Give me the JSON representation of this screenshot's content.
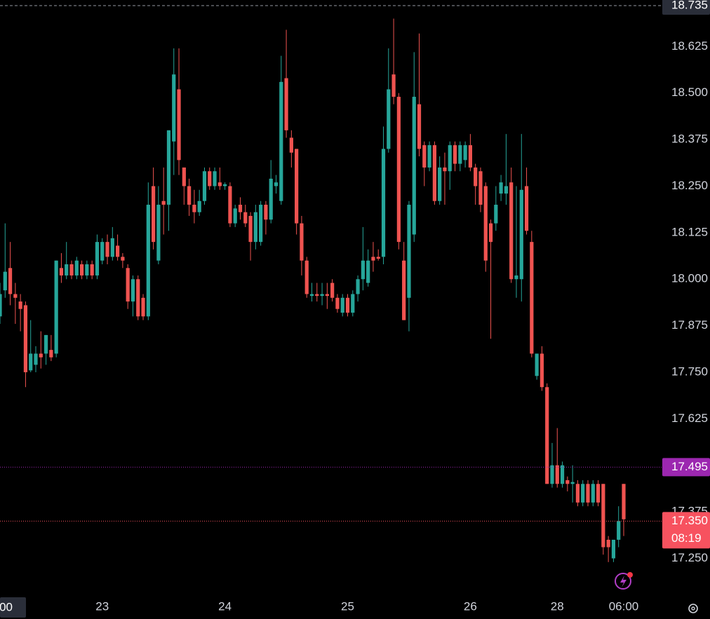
{
  "chart_data": {
    "type": "candlestick",
    "up_color": "#26a69a",
    "down_color": "#ef5350",
    "categories": [
      null,
      null,
      "00",
      null,
      null,
      null,
      null,
      null,
      null,
      null,
      null,
      null,
      null,
      null,
      null,
      null,
      null,
      null,
      null,
      null,
      "23",
      null,
      null,
      null,
      null,
      null,
      null,
      null,
      null,
      null,
      null,
      null,
      null,
      null,
      null,
      null,
      null,
      null,
      null,
      null,
      null,
      null,
      null,
      null,
      "24",
      null,
      null,
      null,
      null,
      null,
      null,
      null,
      null,
      null,
      null,
      null,
      null,
      null,
      null,
      null,
      null,
      null,
      null,
      null,
      null,
      null,
      null,
      null,
      "25",
      null,
      null,
      null,
      null,
      null,
      null,
      null,
      null,
      null,
      null,
      null,
      null,
      null,
      null,
      null,
      null,
      null,
      null,
      null,
      null,
      null,
      null,
      null,
      "26",
      null,
      null,
      null,
      null,
      null,
      null,
      null,
      null,
      null,
      null,
      null,
      null,
      null,
      null,
      null,
      null,
      "28",
      null,
      null,
      null,
      null,
      null,
      null,
      null,
      null,
      null,
      null,
      null,
      null,
      "06:00"
    ],
    "open": [
      17.9,
      17.97,
      18.03,
      17.96,
      17.94,
      17.93,
      17.755,
      17.77,
      17.8,
      17.8,
      17.81,
      17.8,
      18.03,
      18.01,
      18.04,
      18.01,
      18.04,
      18.01,
      18.04,
      18.01,
      18.05,
      18.1,
      18.06,
      18.09,
      18.06,
      18.03,
      17.94,
      18.0,
      17.95,
      17.9,
      18.25,
      18.05,
      18.21,
      18.2,
      18.37,
      18.51,
      18.3,
      18.25,
      18.2,
      18.18,
      18.21,
      18.29,
      18.25,
      18.26,
      18.25,
      18.25,
      18.15,
      18.2,
      18.18,
      18.17,
      18.1,
      18.1,
      18.2,
      18.16,
      18.25,
      18.21,
      18.54,
      18.38,
      18.35,
      18.15,
      18.05,
      17.955,
      17.96,
      17.955,
      17.96,
      17.99,
      17.95,
      17.91,
      17.95,
      17.91,
      17.96,
      18.0,
      17.99,
      18.06,
      18.06,
      18.06,
      18.35,
      18.55,
      18.49,
      18.05,
      17.95,
      18.12,
      18.47,
      18.36,
      18.3,
      18.36,
      18.21,
      18.3,
      18.29,
      18.36,
      18.31,
      18.32,
      18.36,
      18.3,
      18.29,
      18.25,
      18.15,
      18.15,
      18.23,
      18.23,
      18.26,
      18.0,
      18.0,
      18.25,
      18.1,
      17.74,
      17.8,
      17.71,
      17.45,
      17.5,
      17.45,
      17.46,
      17.45,
      17.45,
      17.4,
      17.45,
      17.4,
      17.45,
      17.45,
      17.3,
      17.25,
      17.3,
      17.45
    ],
    "high": [
      17.99,
      18.15,
      18.1,
      17.99,
      17.96,
      17.94,
      17.89,
      17.82,
      17.86,
      17.85,
      17.85,
      18.05,
      18.07,
      18.1,
      18.05,
      18.06,
      18.05,
      18.05,
      18.05,
      18.12,
      18.11,
      18.12,
      18.14,
      18.12,
      18.07,
      18.04,
      18.01,
      18.01,
      17.96,
      18.26,
      18.3,
      18.25,
      18.3,
      18.4,
      18.62,
      18.62,
      18.3,
      18.27,
      18.24,
      18.24,
      18.3,
      18.3,
      18.3,
      18.3,
      18.26,
      18.26,
      18.2,
      18.22,
      18.2,
      18.18,
      18.2,
      18.21,
      18.21,
      18.32,
      18.28,
      18.6,
      18.67,
      18.4,
      18.35,
      18.17,
      18.06,
      17.99,
      17.99,
      17.99,
      17.99,
      18.0,
      17.96,
      17.96,
      17.96,
      17.97,
      18.01,
      18.14,
      18.08,
      18.1,
      18.08,
      18.41,
      18.62,
      18.7,
      18.5,
      18.1,
      18.21,
      18.61,
      18.66,
      18.37,
      18.37,
      18.37,
      18.33,
      18.34,
      18.37,
      18.37,
      18.37,
      18.37,
      18.39,
      18.31,
      18.3,
      18.26,
      18.16,
      18.25,
      18.28,
      18.39,
      18.3,
      18.25,
      18.39,
      18.3,
      18.13,
      17.8,
      17.82,
      17.72,
      17.56,
      17.6,
      17.51,
      17.47,
      17.5,
      17.46,
      17.46,
      17.46,
      17.46,
      17.46,
      17.45,
      17.31,
      17.3,
      17.39,
      17.45
    ],
    "low": [
      17.88,
      17.95,
      17.93,
      17.88,
      17.86,
      17.71,
      17.75,
      17.75,
      17.76,
      17.77,
      17.78,
      17.79,
      17.99,
      18.0,
      18.0,
      18.0,
      18.0,
      18.0,
      18.0,
      18.0,
      18.04,
      18.04,
      18.05,
      18.05,
      18.03,
      17.92,
      17.9,
      17.89,
      17.89,
      17.89,
      18.08,
      18.04,
      18.12,
      18.13,
      18.28,
      18.28,
      18.2,
      18.17,
      18.15,
      18.17,
      18.2,
      18.24,
      18.24,
      18.24,
      18.24,
      18.14,
      18.14,
      18.16,
      18.14,
      18.05,
      18.08,
      18.09,
      18.12,
      18.15,
      18.23,
      18.2,
      18.38,
      18.3,
      18.12,
      18.01,
      17.95,
      17.94,
      17.94,
      17.93,
      17.92,
      17.94,
      17.91,
      17.9,
      17.9,
      17.9,
      17.94,
      17.97,
      17.98,
      18.02,
      18.05,
      18.04,
      18.34,
      18.47,
      18.08,
      17.89,
      17.86,
      18.1,
      18.33,
      18.25,
      18.29,
      18.2,
      18.2,
      18.2,
      18.24,
      18.29,
      18.29,
      18.3,
      18.29,
      18.2,
      18.18,
      18.02,
      17.84,
      18.13,
      18.21,
      18.2,
      17.99,
      17.95,
      17.94,
      18.12,
      17.79,
      17.73,
      17.7,
      17.45,
      17.44,
      17.44,
      17.44,
      17.43,
      17.4,
      17.39,
      17.39,
      17.39,
      17.39,
      17.39,
      17.26,
      17.24,
      17.24,
      17.28,
      17.31
    ],
    "close": [
      17.96,
      18.02,
      17.96,
      17.95,
      17.92,
      17.75,
      17.8,
      17.8,
      17.79,
      17.85,
      17.79,
      18.05,
      18.01,
      18.04,
      18.01,
      18.05,
      18.01,
      18.04,
      18.01,
      18.1,
      18.1,
      18.06,
      18.11,
      18.06,
      18.05,
      17.94,
      18.0,
      17.9,
      17.9,
      18.2,
      18.1,
      18.2,
      18.2,
      18.4,
      18.55,
      18.32,
      18.25,
      18.2,
      18.18,
      18.21,
      18.29,
      18.25,
      18.29,
      18.25,
      18.255,
      18.15,
      18.19,
      18.18,
      18.15,
      18.1,
      18.18,
      18.2,
      18.16,
      18.27,
      18.26,
      18.53,
      18.4,
      18.34,
      18.15,
      18.05,
      17.96,
      17.96,
      17.955,
      17.96,
      17.955,
      17.95,
      17.92,
      17.95,
      17.91,
      17.96,
      18.0,
      18.05,
      18.05,
      18.05,
      18.055,
      18.35,
      18.51,
      18.49,
      18.1,
      17.89,
      18.2,
      18.49,
      18.35,
      18.3,
      18.36,
      18.21,
      18.3,
      18.29,
      18.36,
      18.31,
      18.36,
      18.36,
      18.3,
      18.25,
      18.2,
      18.05,
      18.1,
      18.2,
      18.26,
      18.25,
      18.0,
      18.01,
      18.24,
      18.13,
      17.8,
      17.8,
      17.71,
      17.45,
      17.5,
      17.45,
      17.5,
      17.45,
      17.455,
      17.4,
      17.45,
      17.4,
      17.45,
      17.4,
      17.28,
      17.28,
      17.3,
      17.35,
      17.355
    ],
    "ylim": [
      17.153,
      18.75
    ],
    "yticks": [
      18.625,
      {
        "value": 18.5,
        "label": "18.500"
      },
      18.375,
      {
        "value": 18.25,
        "label": "18.250"
      },
      18.125,
      {
        "value": 18.0,
        "label": "18.000"
      },
      17.875,
      {
        "value": 17.75,
        "label": "17.750"
      },
      17.625,
      17.375,
      {
        "value": 17.25,
        "label": "17.250"
      }
    ],
    "price_lines": [
      {
        "value": 18.735,
        "label": "18.735",
        "color": "#2a2e39",
        "style": "dashed"
      },
      {
        "value": 17.495,
        "label": "17.495",
        "color": "#9c27b0",
        "style": "dotted"
      },
      {
        "value": 17.35,
        "label": "17.350",
        "color": "#f7525f",
        "style": "dotted",
        "countdown": "08:19"
      }
    ],
    "grid": false
  }
}
